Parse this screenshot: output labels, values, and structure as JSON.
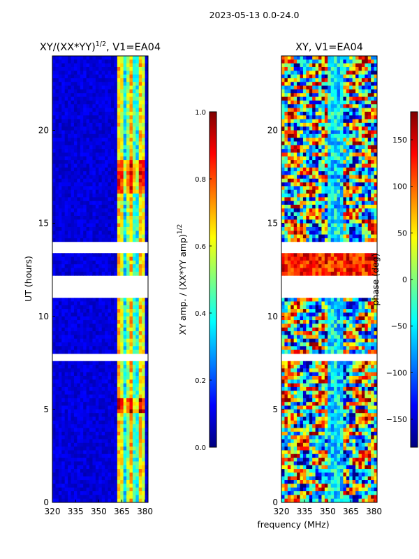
{
  "suptitle": "2023-05-13 0.0-24.0",
  "xlabel": "frequency (MHz)",
  "colors": {
    "jet": [
      "#00007f",
      "#0000ff",
      "#007fff",
      "#00ffff",
      "#7fff7f",
      "#ffff00",
      "#ff7f00",
      "#ff0000",
      "#7f0000"
    ]
  },
  "chart_data": [
    {
      "type": "heatmap",
      "title": "XY/(XX*YY)^{1/2}, V1=EA04",
      "title_main": "XY/(XX*YY)",
      "title_sup": "1/2",
      "title_tail": ", V1=EA04",
      "ylabel": "UT (hours)",
      "xlim": [
        320,
        382
      ],
      "ylim": [
        0,
        24
      ],
      "xticks": [
        "320",
        "335",
        "350",
        "365",
        "380"
      ],
      "xtick_values": [
        320,
        335,
        350,
        365,
        380
      ],
      "yticks": [
        "0",
        "5",
        "10",
        "15",
        "20"
      ],
      "ytick_values": [
        0,
        5,
        10,
        15,
        20
      ],
      "gap_hours": [
        [
          11.0,
          12.1
        ],
        [
          7.6,
          7.9
        ],
        [
          13.5,
          14.0
        ]
      ],
      "colorbar": {
        "label_main": "XY amp. / (XX*YY amp)",
        "label_sup": "1/2",
        "range": [
          0.0,
          1.0
        ],
        "ticks": [
          "0.0",
          "0.2",
          "0.4",
          "0.6",
          "0.8",
          "1.0"
        ],
        "tick_values": [
          0.0,
          0.2,
          0.4,
          0.6,
          0.8,
          1.0
        ]
      }
    },
    {
      "type": "heatmap",
      "title": "XY, V1=EA04",
      "ylabel": "",
      "xlim": [
        320,
        382
      ],
      "ylim": [
        0,
        24
      ],
      "xticks": [
        "320",
        "335",
        "350",
        "365",
        "380"
      ],
      "xtick_values": [
        320,
        335,
        350,
        365,
        380
      ],
      "yticks": [
        "0",
        "5",
        "10",
        "15",
        "20"
      ],
      "ytick_values": [
        0,
        5,
        10,
        15,
        20
      ],
      "gap_hours": [
        [
          11.0,
          12.1
        ],
        [
          7.6,
          7.9
        ],
        [
          13.5,
          14.0
        ]
      ],
      "colorbar": {
        "label": "phase (deg)",
        "range": [
          -180,
          180
        ],
        "ticks": [
          "−150",
          "−100",
          "−50",
          "0",
          "50",
          "100",
          "150"
        ],
        "tick_values": [
          -150,
          -100,
          -50,
          0,
          50,
          100,
          150
        ]
      }
    }
  ]
}
